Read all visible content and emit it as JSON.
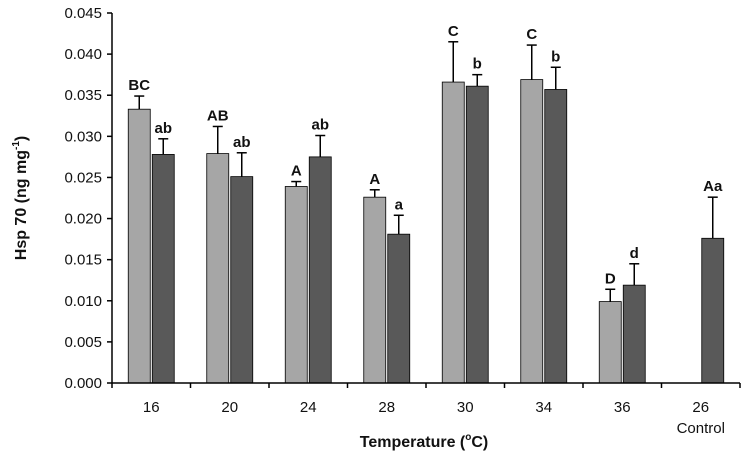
{
  "chart_data": {
    "type": "bar",
    "xlabel": "Temperature (",
    "xlabel_sup": "o",
    "xlabel_suffix": "C)",
    "ylabel": "Hsp 70 (ng mg",
    "ylabel_sup": "-1",
    "ylabel_suffix": ")",
    "ylim": [
      0,
      0.045
    ],
    "yticks": [
      "0.000",
      "0.005",
      "0.010",
      "0.015",
      "0.020",
      "0.025",
      "0.030",
      "0.035",
      "0.040",
      "0.045"
    ],
    "categories": [
      "16",
      "20",
      "24",
      "28",
      "30",
      "34",
      "36",
      "26"
    ],
    "category_sublabels": [
      "",
      "",
      "",
      "",
      "",
      "",
      "",
      "Control"
    ],
    "series": [
      {
        "color": "#a6a6a6",
        "values": [
          0.0333,
          0.0279,
          0.0239,
          0.0226,
          0.0366,
          0.0369,
          0.0099,
          null
        ],
        "errors": [
          0.0016,
          0.0033,
          0.0006,
          0.0009,
          0.0049,
          0.0042,
          0.0015,
          null
        ],
        "labels": [
          "BC",
          "AB",
          "A",
          "A",
          "C",
          "C",
          "D",
          ""
        ]
      },
      {
        "color": "#595959",
        "values": [
          0.0278,
          0.0251,
          0.0275,
          0.0181,
          0.0361,
          0.0357,
          0.0119,
          0.0176
        ],
        "errors": [
          0.0019,
          0.0029,
          0.0026,
          0.0023,
          0.0014,
          0.0027,
          0.0026,
          0.005
        ],
        "labels": [
          "ab",
          "ab",
          "ab",
          "a",
          "b",
          "b",
          "d",
          "Aa"
        ]
      }
    ],
    "grid": false,
    "legend": "none"
  }
}
